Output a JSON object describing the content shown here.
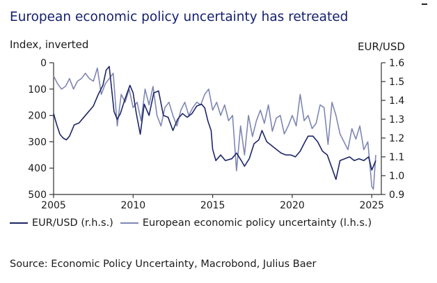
{
  "title": "European economic policy uncertainty has retreated",
  "left_axis_label": "Index, inverted",
  "right_axis_label": "EUR/USD",
  "legend": {
    "eurusd": "EUR/USD (r.h.s.)",
    "epu": "European economic policy uncertainty (l.h.s.)"
  },
  "source": "Source: Economic Policy Uncertainty, Macrobond, Julius Baer",
  "colors": {
    "eurusd": "#1c2566",
    "epu": "#7e86b3",
    "title": "#141e6e"
  },
  "chart_data": {
    "type": "line",
    "title": "European economic policy uncertainty has retreated",
    "xlabel": "",
    "xlim": [
      2005,
      2025.6
    ],
    "x_ticks": [
      "2005",
      "2010",
      "2015",
      "2020",
      "2025"
    ],
    "left_axis": {
      "label": "Index, inverted",
      "inverted": true,
      "ylim": [
        0,
        500
      ],
      "ticks": [
        "0",
        "100",
        "200",
        "300",
        "400",
        "500"
      ]
    },
    "right_axis": {
      "label": "EUR/USD",
      "ylim": [
        0.9,
        1.6
      ],
      "ticks": [
        "0.9",
        "1.0",
        "1.1",
        "1.2",
        "1.3",
        "1.4",
        "1.5",
        "1.6"
      ]
    },
    "series": [
      {
        "name": "European economic policy uncertainty (l.h.s.)",
        "axis": "left",
        "x": [
          2005.0,
          2005.25,
          2005.5,
          2005.75,
          2006.0,
          2006.25,
          2006.5,
          2006.75,
          2007.0,
          2007.25,
          2007.5,
          2007.75,
          2008.0,
          2008.25,
          2008.5,
          2008.75,
          2009.0,
          2009.25,
          2009.5,
          2009.75,
          2010.0,
          2010.25,
          2010.5,
          2010.75,
          2011.0,
          2011.25,
          2011.5,
          2011.75,
          2012.0,
          2012.25,
          2012.5,
          2012.75,
          2013.0,
          2013.25,
          2013.5,
          2013.75,
          2014.0,
          2014.25,
          2014.5,
          2014.75,
          2015.0,
          2015.25,
          2015.5,
          2015.75,
          2016.0,
          2016.25,
          2016.5,
          2016.75,
          2017.0,
          2017.25,
          2017.5,
          2017.75,
          2018.0,
          2018.25,
          2018.5,
          2018.75,
          2019.0,
          2019.25,
          2019.5,
          2019.75,
          2020.0,
          2020.25,
          2020.5,
          2020.75,
          2021.0,
          2021.25,
          2021.5,
          2021.75,
          2022.0,
          2022.25,
          2022.5,
          2022.75,
          2023.0,
          2023.25,
          2023.5,
          2023.75,
          2024.0,
          2024.25,
          2024.5,
          2024.75,
          2024.9,
          2025.0,
          2025.1,
          2025.25
        ],
        "y": [
          50,
          80,
          100,
          90,
          60,
          100,
          70,
          60,
          40,
          60,
          70,
          20,
          120,
          80,
          60,
          40,
          240,
          120,
          150,
          100,
          170,
          150,
          220,
          100,
          160,
          90,
          200,
          240,
          170,
          150,
          200,
          240,
          180,
          150,
          200,
          170,
          150,
          160,
          120,
          100,
          180,
          150,
          200,
          160,
          220,
          200,
          410,
          240,
          350,
          200,
          280,
          220,
          180,
          230,
          160,
          260,
          210,
          200,
          270,
          240,
          200,
          240,
          120,
          220,
          200,
          250,
          230,
          160,
          170,
          310,
          150,
          200,
          270,
          300,
          330,
          250,
          290,
          240,
          330,
          300,
          400,
          470,
          480,
          350
        ]
      },
      {
        "name": "EUR/USD (r.h.s.)",
        "axis": "right",
        "x": [
          2005.0,
          2005.2,
          2005.4,
          2005.6,
          2005.8,
          2006.0,
          2006.3,
          2006.6,
          2006.9,
          2007.2,
          2007.5,
          2007.8,
          2008.1,
          2008.3,
          2008.5,
          2008.8,
          2009.0,
          2009.2,
          2009.5,
          2009.8,
          2010.0,
          2010.2,
          2010.45,
          2010.7,
          2011.0,
          2011.3,
          2011.6,
          2011.9,
          2012.2,
          2012.5,
          2012.8,
          2013.1,
          2013.4,
          2013.7,
          2014.0,
          2014.3,
          2014.5,
          2014.7,
          2014.9,
          2015.0,
          2015.2,
          2015.5,
          2015.8,
          2016.2,
          2016.5,
          2016.8,
          2017.0,
          2017.3,
          2017.6,
          2017.9,
          2018.1,
          2018.4,
          2018.7,
          2019.0,
          2019.3,
          2019.6,
          2019.9,
          2020.2,
          2020.5,
          2020.8,
          2021.0,
          2021.3,
          2021.6,
          2021.9,
          2022.2,
          2022.5,
          2022.75,
          2023.0,
          2023.3,
          2023.6,
          2023.9,
          2024.2,
          2024.5,
          2024.8,
          2025.0,
          2025.1,
          2025.25
        ],
        "y": [
          1.33,
          1.27,
          1.22,
          1.2,
          1.19,
          1.21,
          1.27,
          1.28,
          1.31,
          1.34,
          1.37,
          1.43,
          1.48,
          1.56,
          1.58,
          1.34,
          1.3,
          1.33,
          1.41,
          1.48,
          1.44,
          1.33,
          1.22,
          1.38,
          1.32,
          1.44,
          1.45,
          1.32,
          1.31,
          1.24,
          1.3,
          1.33,
          1.31,
          1.33,
          1.37,
          1.38,
          1.36,
          1.29,
          1.24,
          1.14,
          1.08,
          1.11,
          1.08,
          1.09,
          1.12,
          1.08,
          1.05,
          1.09,
          1.17,
          1.19,
          1.24,
          1.18,
          1.16,
          1.14,
          1.12,
          1.11,
          1.11,
          1.1,
          1.13,
          1.18,
          1.21,
          1.21,
          1.18,
          1.13,
          1.11,
          1.04,
          0.98,
          1.08,
          1.09,
          1.1,
          1.08,
          1.09,
          1.08,
          1.1,
          1.03,
          1.05,
          1.08
        ]
      }
    ],
    "grid": false,
    "legend_position": "bottom"
  }
}
